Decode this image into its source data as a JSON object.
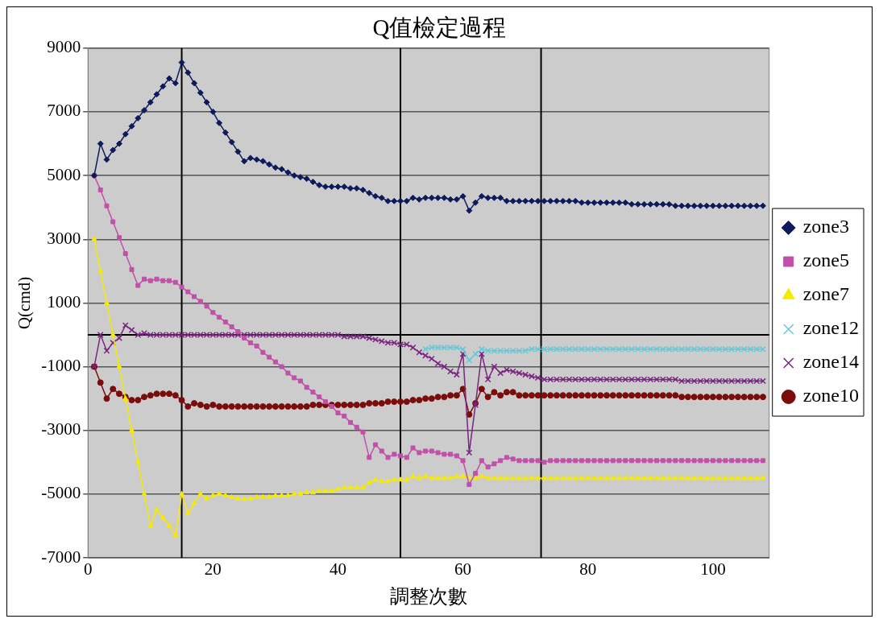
{
  "chart_data": {
    "type": "line",
    "title": "Q值檢定過程",
    "xlabel": "調整次數",
    "ylabel": "Q(cmd)",
    "x": [
      1,
      2,
      3,
      4,
      5,
      6,
      7,
      8,
      9,
      10,
      11,
      12,
      13,
      14,
      15,
      16,
      17,
      18,
      19,
      20,
      21,
      22,
      23,
      24,
      25,
      26,
      27,
      28,
      29,
      30,
      31,
      32,
      33,
      34,
      35,
      36,
      37,
      38,
      39,
      40,
      41,
      42,
      43,
      44,
      45,
      46,
      47,
      48,
      49,
      50,
      51,
      52,
      53,
      54,
      55,
      56,
      57,
      58,
      59,
      60,
      61,
      62,
      63,
      64,
      65,
      66,
      67,
      68,
      69,
      70,
      71,
      72,
      73,
      74,
      75,
      76,
      77,
      78,
      79,
      80,
      81,
      82,
      83,
      84,
      85,
      86,
      87,
      88,
      89,
      90,
      91,
      92,
      93,
      94,
      95,
      96,
      97,
      98,
      99,
      100,
      101,
      102,
      103,
      104,
      105,
      106,
      107,
      108
    ],
    "xlim": [
      0,
      109
    ],
    "xticks": [
      0,
      20,
      40,
      60,
      80,
      100
    ],
    "ylim": [
      -7000,
      9000
    ],
    "yticks": [
      -7000,
      -5000,
      -3000,
      -1000,
      1000,
      3000,
      5000,
      7000,
      9000
    ],
    "grid": "y",
    "legend": "right",
    "line_style": "solid",
    "ref_lines": [
      {
        "axis": "x",
        "value": 15,
        "color": "#000000"
      },
      {
        "axis": "x",
        "value": 50,
        "color": "#000000"
      },
      {
        "axis": "x",
        "value": 72.5,
        "color": "#000000"
      },
      {
        "axis": "y",
        "value": 0,
        "color": "#000000"
      }
    ],
    "series": [
      {
        "name": "zone3",
        "color": "#0d1a5c",
        "marker": "diamond",
        "values": [
          5000,
          6000,
          5500,
          5800,
          6000,
          6300,
          6550,
          6800,
          7050,
          7300,
          7550,
          7800,
          8050,
          7900,
          8550,
          8230,
          7900,
          7600,
          7300,
          7000,
          6650,
          6350,
          6050,
          5750,
          5450,
          5550,
          5500,
          5450,
          5350,
          5250,
          5200,
          5100,
          5000,
          4950,
          4900,
          4800,
          4700,
          4650,
          4650,
          4650,
          4650,
          4600,
          4600,
          4550,
          4450,
          4350,
          4300,
          4200,
          4200,
          4200,
          4200,
          4300,
          4250,
          4300,
          4300,
          4300,
          4300,
          4250,
          4250,
          4350,
          3900,
          4150,
          4350,
          4300,
          4300,
          4300,
          4200,
          4200,
          4200,
          4200,
          4200,
          4200,
          4200,
          4200,
          4200,
          4200,
          4200,
          4200,
          4150,
          4150,
          4150,
          4150,
          4150,
          4150,
          4150,
          4150,
          4100,
          4100,
          4100,
          4100,
          4100,
          4100,
          4100,
          4050,
          4050,
          4050,
          4050,
          4050,
          4050,
          4050,
          4050,
          4050,
          4050,
          4050,
          4050,
          4050,
          4050,
          4050
        ]
      },
      {
        "name": "zone5",
        "color": "#c050a8",
        "marker": "square",
        "values": [
          5000,
          4550,
          4050,
          3550,
          3050,
          2550,
          2050,
          1550,
          1750,
          1700,
          1750,
          1700,
          1700,
          1650,
          1500,
          1350,
          1200,
          1050,
          900,
          700,
          550,
          400,
          250,
          100,
          -100,
          -250,
          -350,
          -550,
          -700,
          -850,
          -1000,
          -1200,
          -1350,
          -1450,
          -1650,
          -1800,
          -1950,
          -2100,
          -2250,
          -2450,
          -2550,
          -2750,
          -2900,
          -3050,
          -3850,
          -3450,
          -3650,
          -3850,
          -3750,
          -3800,
          -3850,
          -3550,
          -3700,
          -3650,
          -3650,
          -3700,
          -3750,
          -3750,
          -3800,
          -3950,
          -4700,
          -4350,
          -3950,
          -4150,
          -4050,
          -3950,
          -3850,
          -3900,
          -3950,
          -3950,
          -3950,
          -3950,
          -4000,
          -3950,
          -3950,
          -3950,
          -3950,
          -3950,
          -3950,
          -3950,
          -3950,
          -3950,
          -3950,
          -3950,
          -3950,
          -3950,
          -3950,
          -3950,
          -3950,
          -3950,
          -3950,
          -3950,
          -3950,
          -3950,
          -3950,
          -3950,
          -3950,
          -3950,
          -3950,
          -3950,
          -3950,
          -3950,
          -3950,
          -3950,
          -3950,
          -3950,
          -3950,
          -3950
        ]
      },
      {
        "name": "zone7",
        "color": "#f5eb00",
        "marker": "triangle",
        "values": [
          3000,
          2000,
          1000,
          0,
          -1000,
          -2000,
          -3000,
          -4000,
          -5000,
          -6000,
          -5500,
          -5750,
          -6000,
          -6300,
          -5000,
          -5600,
          -5300,
          -5000,
          -5150,
          -5050,
          -5000,
          -5050,
          -5100,
          -5150,
          -5150,
          -5150,
          -5100,
          -5100,
          -5100,
          -5050,
          -5050,
          -5050,
          -5000,
          -5000,
          -4950,
          -4950,
          -4900,
          -4900,
          -4900,
          -4850,
          -4800,
          -4800,
          -4800,
          -4800,
          -4650,
          -4550,
          -4600,
          -4600,
          -4550,
          -4550,
          -4550,
          -4450,
          -4500,
          -4450,
          -4500,
          -4500,
          -4500,
          -4500,
          -4450,
          -4450,
          -4500,
          -4500,
          -4450,
          -4500,
          -4500,
          -4500,
          -4500,
          -4500,
          -4500,
          -4500,
          -4500,
          -4500,
          -4500,
          -4500,
          -4500,
          -4500,
          -4500,
          -4500,
          -4500,
          -4500,
          -4500,
          -4500,
          -4500,
          -4500,
          -4500,
          -4500,
          -4500,
          -4500,
          -4500,
          -4500,
          -4500,
          -4500,
          -4500,
          -4500,
          -4500,
          -4500,
          -4500,
          -4500,
          -4500,
          -4500,
          -4500,
          -4500,
          -4500,
          -4500,
          -4500,
          -4500,
          -4500,
          -4500
        ]
      },
      {
        "name": "zone12",
        "color": "#66c8d8",
        "marker": "cross",
        "values": [
          null,
          null,
          null,
          null,
          null,
          null,
          null,
          null,
          null,
          null,
          null,
          null,
          null,
          null,
          null,
          null,
          null,
          null,
          null,
          null,
          null,
          null,
          null,
          null,
          null,
          null,
          null,
          null,
          null,
          null,
          null,
          null,
          null,
          null,
          null,
          null,
          null,
          null,
          null,
          null,
          null,
          null,
          null,
          null,
          null,
          null,
          null,
          null,
          null,
          null,
          null,
          null,
          null,
          -450,
          -400,
          -400,
          -400,
          -400,
          -400,
          -450,
          -800,
          -600,
          -450,
          -500,
          -500,
          -500,
          -500,
          -500,
          -500,
          -500,
          -450,
          -450,
          -450,
          -450,
          -450,
          -450,
          -450,
          -450,
          -450,
          -450,
          -450,
          -450,
          -450,
          -450,
          -450,
          -450,
          -450,
          -450,
          -450,
          -450,
          -450,
          -450,
          -450,
          -450,
          -450,
          -450,
          -450,
          -450,
          -450,
          -450,
          -450,
          -450,
          -450,
          -450,
          -450,
          -450,
          -450,
          -450
        ]
      },
      {
        "name": "zone14",
        "color": "#7a2580",
        "marker": "cross",
        "values": [
          -1000,
          0,
          -500,
          -250,
          -100,
          300,
          150,
          0,
          50,
          0,
          0,
          0,
          0,
          0,
          0,
          0,
          0,
          0,
          0,
          0,
          0,
          0,
          0,
          0,
          0,
          0,
          0,
          0,
          0,
          0,
          0,
          0,
          0,
          0,
          0,
          0,
          0,
          0,
          0,
          0,
          -50,
          -50,
          -50,
          -50,
          -100,
          -150,
          -200,
          -250,
          -250,
          -300,
          -300,
          -400,
          -550,
          -650,
          -750,
          -900,
          -1000,
          -1150,
          -1250,
          -600,
          -3700,
          -2200,
          -600,
          -1400,
          -1000,
          -1200,
          -1100,
          -1150,
          -1200,
          -1250,
          -1300,
          -1350,
          -1400,
          -1400,
          -1400,
          -1400,
          -1400,
          -1400,
          -1400,
          -1400,
          -1400,
          -1400,
          -1400,
          -1400,
          -1400,
          -1400,
          -1400,
          -1400,
          -1400,
          -1400,
          -1400,
          -1400,
          -1400,
          -1400,
          -1450,
          -1450,
          -1450,
          -1450,
          -1450,
          -1450,
          -1450,
          -1450,
          -1450,
          -1450,
          -1450,
          -1450,
          -1450,
          -1450
        ]
      },
      {
        "name": "zone10",
        "color": "#7a0c0c",
        "marker": "circle",
        "values": [
          -1000,
          -1500,
          -2000,
          -1700,
          -1850,
          -1950,
          -2050,
          -2050,
          -1950,
          -1900,
          -1850,
          -1850,
          -1850,
          -1900,
          -2050,
          -2250,
          -2150,
          -2200,
          -2250,
          -2200,
          -2250,
          -2250,
          -2250,
          -2250,
          -2250,
          -2250,
          -2250,
          -2250,
          -2250,
          -2250,
          -2250,
          -2250,
          -2250,
          -2250,
          -2250,
          -2200,
          -2200,
          -2200,
          -2200,
          -2200,
          -2200,
          -2200,
          -2200,
          -2200,
          -2150,
          -2150,
          -2150,
          -2100,
          -2100,
          -2100,
          -2100,
          -2050,
          -2050,
          -2000,
          -2000,
          -1950,
          -1950,
          -1900,
          -1900,
          -1700,
          -2500,
          -2150,
          -1700,
          -1950,
          -1800,
          -1900,
          -1800,
          -1800,
          -1900,
          -1900,
          -1900,
          -1900,
          -1900,
          -1900,
          -1900,
          -1900,
          -1900,
          -1900,
          -1900,
          -1900,
          -1900,
          -1900,
          -1900,
          -1900,
          -1900,
          -1900,
          -1900,
          -1900,
          -1900,
          -1900,
          -1900,
          -1900,
          -1900,
          -1900,
          -1950,
          -1950,
          -1950,
          -1950,
          -1950,
          -1950,
          -1950,
          -1950,
          -1950,
          -1950,
          -1950,
          -1950,
          -1950,
          -1950
        ]
      }
    ]
  }
}
